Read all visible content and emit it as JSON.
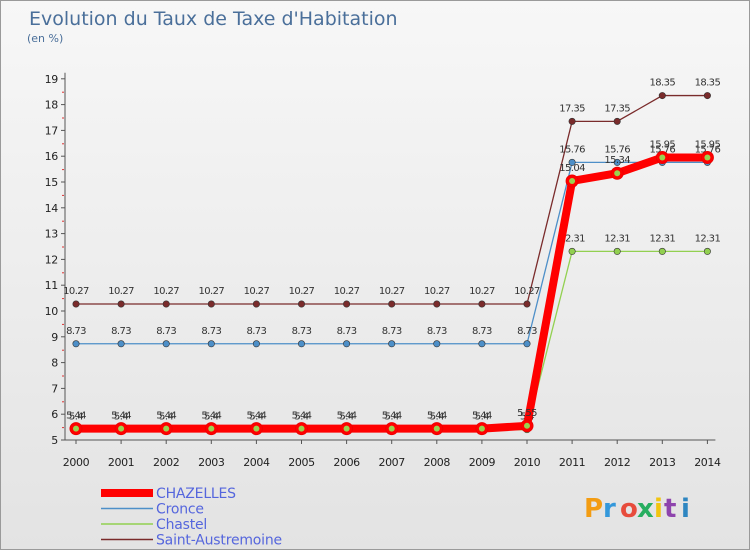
{
  "chart_data": {
    "type": "line",
    "title": "Evolution du Taux de Taxe d'Habitation",
    "unit_label": "(en %)",
    "xlabel": "",
    "ylabel": "(en %)",
    "ylim": [
      5,
      19
    ],
    "yticks": [
      "5",
      "6",
      "7",
      "8",
      "9",
      "10",
      "11",
      "12",
      "13",
      "14",
      "15",
      "16",
      "17",
      "18",
      "19"
    ],
    "grid": false,
    "categories": [
      "2000",
      "2001",
      "2002",
      "2003",
      "2004",
      "2005",
      "2006",
      "2007",
      "2008",
      "2009",
      "2010",
      "2011",
      "2012",
      "2013",
      "2014"
    ],
    "series": [
      {
        "name": "Saint-Austremoine",
        "color": "#7a2b2b",
        "values": [
          10.27,
          10.27,
          10.27,
          10.27,
          10.27,
          10.27,
          10.27,
          10.27,
          10.27,
          10.27,
          10.27,
          17.35,
          17.35,
          18.35,
          18.35
        ],
        "labels": [
          "10.27",
          "10.27",
          "10.27",
          "10.27",
          "10.27",
          "10.27",
          "10.27",
          "10.27",
          "10.27",
          "10.27",
          "10.27",
          "17.35",
          "17.35",
          "18.35",
          "18.35"
        ]
      },
      {
        "name": "Cronce",
        "color": "#4d8fc8",
        "values": [
          8.73,
          8.73,
          8.73,
          8.73,
          8.73,
          8.73,
          8.73,
          8.73,
          8.73,
          8.73,
          8.73,
          15.76,
          15.76,
          15.76,
          15.76
        ],
        "labels": [
          "8.73",
          "8.73",
          "8.73",
          "8.73",
          "8.73",
          "8.73",
          "8.73",
          "8.73",
          "8.73",
          "8.73",
          "8.73",
          "15.76",
          "15.76",
          "15.76",
          "15.76"
        ]
      },
      {
        "name": "Chastel",
        "color": "#92d050",
        "values": [
          5.4,
          5.4,
          5.4,
          5.4,
          5.4,
          5.4,
          5.4,
          5.4,
          5.4,
          5.4,
          5.4,
          12.31,
          12.31,
          12.31,
          12.31
        ],
        "labels": [
          "5.4",
          "5.4",
          "5.4",
          "5.4",
          "5.4",
          "5.4",
          "5.4",
          "5.4",
          "5.4",
          "5.4",
          "5.4",
          "12.31",
          "12.31",
          "12.31",
          "12.31"
        ]
      },
      {
        "name": "CHAZELLES",
        "color": "#ff0000",
        "values": [
          5.44,
          5.44,
          5.44,
          5.44,
          5.44,
          5.44,
          5.44,
          5.44,
          5.44,
          5.44,
          5.55,
          15.04,
          15.34,
          15.95,
          15.95
        ],
        "labels": [
          "5.44",
          "5.44",
          "5.44",
          "5.44",
          "5.44",
          "5.44",
          "5.44",
          "5.44",
          "5.44",
          "5.44",
          "5.55",
          "15.04",
          "15.34",
          "15.95",
          "15.95"
        ]
      }
    ],
    "legend": [
      "CHAZELLES",
      "Cronce",
      "Chastel",
      "Saint-Austremoine"
    ],
    "legend_position": "bottom-left"
  },
  "brand": {
    "logo_text": "Proxiti",
    "colors": [
      "#f39c12",
      "#3498db",
      "#e74c3c",
      "#27ae60",
      "#f1c40f",
      "#8e44ad",
      "#2e86c1"
    ]
  }
}
